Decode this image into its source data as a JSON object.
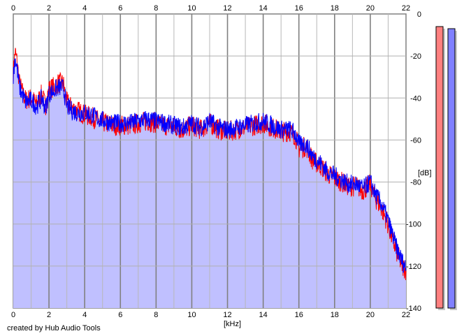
{
  "chart_data": {
    "type": "area",
    "title": "",
    "xlabel": "[kHz]",
    "ylabel": "[dB]",
    "xlim": [
      0,
      22
    ],
    "ylim": [
      -140,
      0
    ],
    "xticks": [
      0,
      2,
      4,
      6,
      8,
      10,
      12,
      14,
      16,
      18,
      20,
      22
    ],
    "yticks": [
      0,
      -20,
      -40,
      -60,
      -80,
      -100,
      -120,
      -140
    ],
    "grid": true,
    "fill_color": "#c0c0ff",
    "series": [
      {
        "color": "#ff0000",
        "x": [
          0,
          0.1,
          0.2,
          0.35,
          0.5,
          0.7,
          1.0,
          1.3,
          1.6,
          1.8,
          2.0,
          2.2,
          2.5,
          2.8,
          3.0,
          3.3,
          3.6,
          4.0,
          4.4,
          4.8,
          5.2,
          5.6,
          6.0,
          6.5,
          7.0,
          7.5,
          8.0,
          8.5,
          9.0,
          9.5,
          10.0,
          10.5,
          11.0,
          11.5,
          12.0,
          12.5,
          13.0,
          13.5,
          14.0,
          14.5,
          15.0,
          15.5,
          15.8,
          16.0,
          16.4,
          16.8,
          17.2,
          17.6,
          18.0,
          18.4,
          18.8,
          19.2,
          19.6,
          20.0,
          20.3,
          20.6,
          20.9,
          21.2,
          21.5,
          21.8,
          22.0
        ],
        "values": [
          -28,
          -18,
          -22,
          -33,
          -37,
          -41,
          -40,
          -43,
          -38,
          -44,
          -36,
          -35,
          -33,
          -33,
          -42,
          -45,
          -46,
          -48,
          -49,
          -51,
          -52,
          -53,
          -53,
          -53,
          -52,
          -51,
          -52,
          -53,
          -54,
          -55,
          -53,
          -55,
          -52,
          -55,
          -56,
          -55,
          -54,
          -53,
          -52,
          -54,
          -56,
          -56,
          -58,
          -64,
          -63,
          -70,
          -72,
          -76,
          -78,
          -80,
          -82,
          -82,
          -84,
          -81,
          -88,
          -92,
          -98,
          -106,
          -114,
          -120,
          -122
        ]
      },
      {
        "color": "#0000ff",
        "x": [
          0,
          0.1,
          0.2,
          0.35,
          0.5,
          0.7,
          1.0,
          1.3,
          1.6,
          1.8,
          2.0,
          2.2,
          2.5,
          2.8,
          3.0,
          3.3,
          3.6,
          4.0,
          4.4,
          4.8,
          5.2,
          5.6,
          6.0,
          6.5,
          7.0,
          7.5,
          8.0,
          8.5,
          9.0,
          9.5,
          10.0,
          10.5,
          11.0,
          11.5,
          12.0,
          12.5,
          13.0,
          13.5,
          14.0,
          14.5,
          15.0,
          15.5,
          15.8,
          16.0,
          16.4,
          16.8,
          17.2,
          17.6,
          18.0,
          18.4,
          18.8,
          19.2,
          19.6,
          20.0,
          20.3,
          20.6,
          20.9,
          21.2,
          21.5,
          21.8,
          22.0
        ],
        "values": [
          -30,
          -21,
          -25,
          -35,
          -38,
          -42,
          -41,
          -44,
          -40,
          -45,
          -38,
          -37,
          -35,
          -35,
          -44,
          -46,
          -47,
          -47,
          -48,
          -50,
          -51,
          -52,
          -52,
          -52,
          -51,
          -50,
          -51,
          -52,
          -53,
          -54,
          -52,
          -54,
          -51,
          -54,
          -55,
          -54,
          -53,
          -52,
          -51,
          -53,
          -55,
          -55,
          -57,
          -62,
          -62,
          -68,
          -71,
          -75,
          -77,
          -79,
          -81,
          -81,
          -83,
          -80,
          -86,
          -90,
          -96,
          -104,
          -112,
          -118,
          -121
        ]
      }
    ],
    "meters": [
      {
        "color": "#ff8080",
        "level_db": -6
      },
      {
        "color": "#8080ff",
        "level_db": -7
      }
    ]
  },
  "footer": {
    "credit": "created by Hub Audio Tools"
  }
}
